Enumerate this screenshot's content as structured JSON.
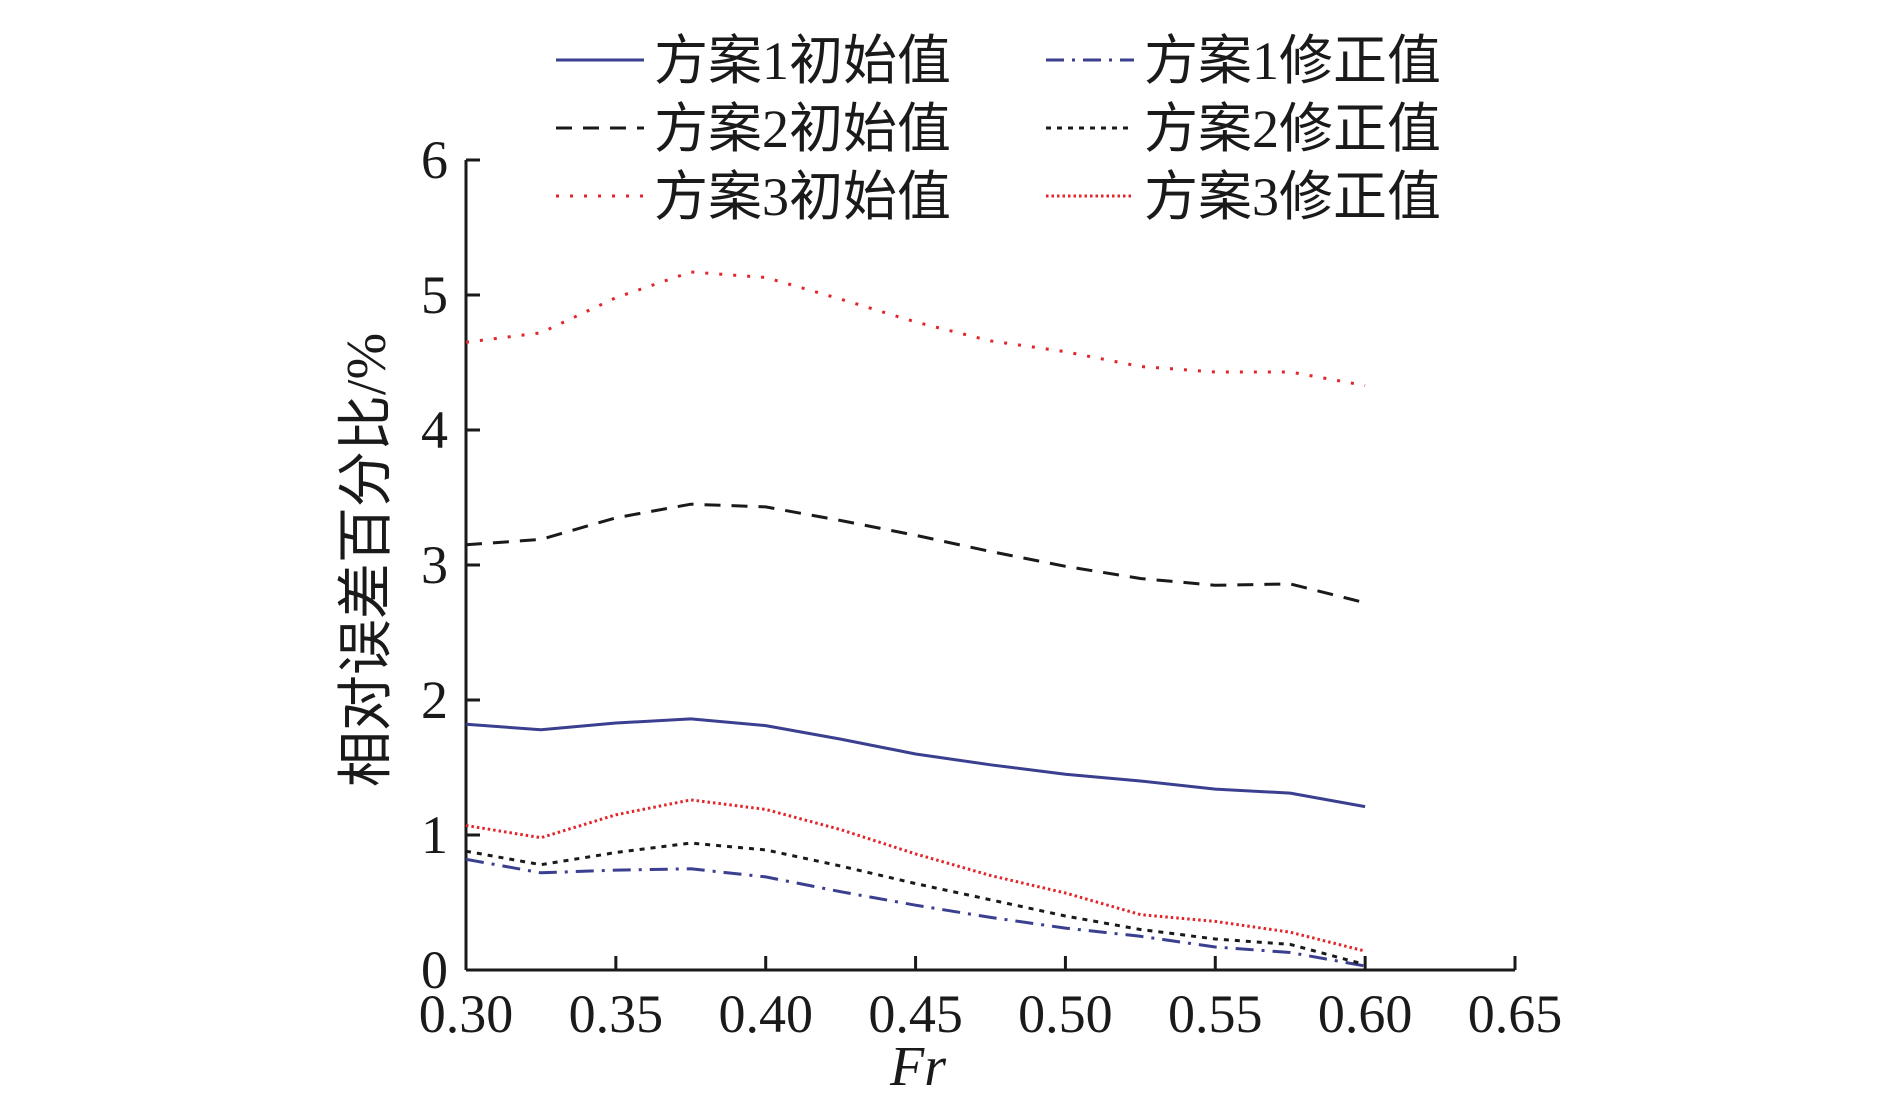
{
  "chart_data": {
    "type": "line",
    "xlabel": "Fr",
    "ylabel": "相对误差百分比/%",
    "xlim": [
      0.3,
      0.65
    ],
    "ylim": [
      0,
      6
    ],
    "xticks": [
      "0.30",
      "0.35",
      "0.40",
      "0.45",
      "0.50",
      "0.55",
      "0.60",
      "0.65"
    ],
    "yticks": [
      "0",
      "1",
      "2",
      "3",
      "4",
      "5",
      "6"
    ],
    "x": [
      0.3,
      0.325,
      0.35,
      0.375,
      0.4,
      0.425,
      0.45,
      0.475,
      0.5,
      0.525,
      0.55,
      0.575,
      0.6
    ],
    "series": [
      {
        "name": "方案1初始值",
        "color": "#3b3f8f",
        "dash": "solid",
        "values": [
          1.82,
          1.78,
          1.83,
          1.86,
          1.81,
          1.71,
          1.6,
          1.52,
          1.45,
          1.4,
          1.34,
          1.31,
          1.21
        ]
      },
      {
        "name": "方案1修正值",
        "color": "#3b3f8f",
        "dash": "dashdot",
        "values": [
          0.82,
          0.72,
          0.74,
          0.75,
          0.69,
          0.58,
          0.48,
          0.39,
          0.31,
          0.25,
          0.17,
          0.13,
          0.03
        ]
      },
      {
        "name": "方案2初始值",
        "color": "#1a1a1a",
        "dash": "dashed",
        "values": [
          3.15,
          3.19,
          3.35,
          3.45,
          3.43,
          3.33,
          3.22,
          3.1,
          2.99,
          2.9,
          2.85,
          2.86,
          2.72
        ]
      },
      {
        "name": "方案2修正值",
        "color": "#1a1a1a",
        "dash": "dotted",
        "values": [
          0.88,
          0.78,
          0.87,
          0.94,
          0.89,
          0.77,
          0.64,
          0.52,
          0.4,
          0.3,
          0.23,
          0.19,
          0.04
        ]
      },
      {
        "name": "方案3初始值",
        "color": "#e0262b",
        "dash": "dotted-sparse",
        "values": [
          4.65,
          4.72,
          4.98,
          5.17,
          5.13,
          4.97,
          4.8,
          4.66,
          4.58,
          4.47,
          4.43,
          4.43,
          4.33
        ]
      },
      {
        "name": "方案3修正值",
        "color": "#e0262b",
        "dash": "dotted-dense",
        "values": [
          1.07,
          0.98,
          1.15,
          1.26,
          1.19,
          1.04,
          0.86,
          0.7,
          0.57,
          0.41,
          0.36,
          0.28,
          0.14
        ]
      }
    ],
    "legend": {
      "placement": "top",
      "columns": 2
    },
    "grid": false
  }
}
